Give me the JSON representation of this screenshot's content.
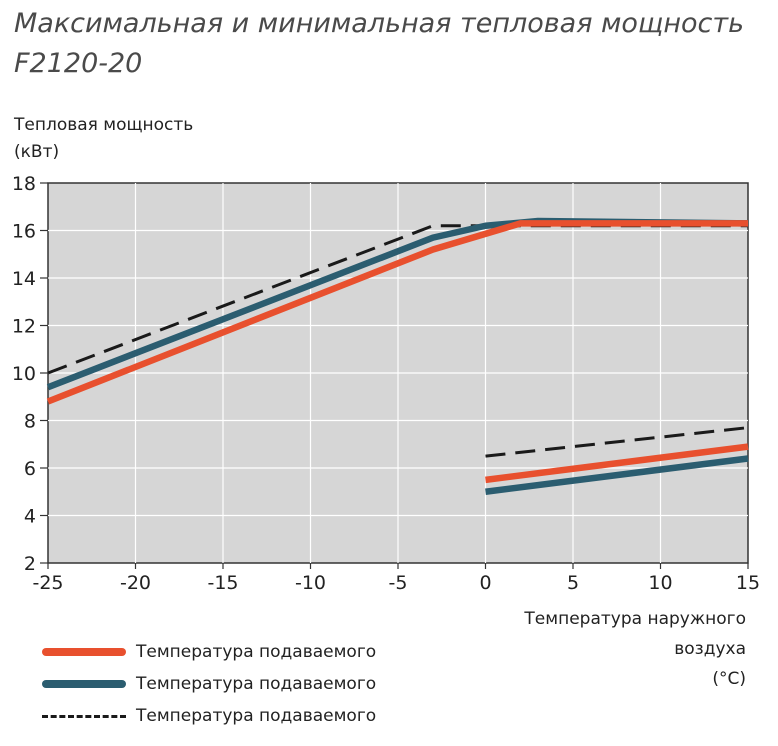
{
  "title_line1": "Максимальная и минимальная тепловая мощность",
  "title_line2": "F2120-20",
  "ylabel_line1": "Тепловая мощность",
  "ylabel_line2": "(кВт)",
  "xlabel_line1": "Температура наружного",
  "xlabel_line2": "воздуха",
  "xlabel_line3": "(°C)",
  "colors": {
    "plot_background": "#d6d6d6",
    "grid": "#ffffff",
    "red": "#e8502e",
    "teal": "#2b5d70",
    "dashed": "#1a1a1a"
  },
  "chart_data": {
    "type": "line",
    "xlim": [
      -25,
      15
    ],
    "ylim": [
      2,
      18
    ],
    "xticks": [
      -25,
      -20,
      -15,
      -10,
      -5,
      0,
      5,
      10,
      15
    ],
    "yticks": [
      2,
      4,
      6,
      8,
      10,
      12,
      14,
      16,
      18
    ],
    "grid": true,
    "legend_position": "bottom-left",
    "series": [
      {
        "name": "Температура подаваемого",
        "color": "red",
        "dash": false,
        "segment": "max",
        "points": [
          [
            -25,
            8.8
          ],
          [
            -3,
            15.2
          ],
          [
            2,
            16.3
          ],
          [
            15,
            16.3
          ]
        ]
      },
      {
        "name": "Температура подаваемого",
        "color": "teal",
        "dash": false,
        "segment": "max",
        "points": [
          [
            -25,
            9.4
          ],
          [
            -3,
            15.7
          ],
          [
            0,
            16.2
          ],
          [
            3,
            16.4
          ],
          [
            15,
            16.3
          ]
        ]
      },
      {
        "name": "Температура подаваемого",
        "color": "dashed",
        "dash": true,
        "segment": "max",
        "points": [
          [
            -25,
            10.0
          ],
          [
            -3,
            16.2
          ],
          [
            15,
            16.2
          ]
        ]
      },
      {
        "name": "Температура подаваемого",
        "color": "red",
        "dash": false,
        "segment": "min",
        "points": [
          [
            0,
            5.5
          ],
          [
            15,
            6.9
          ]
        ]
      },
      {
        "name": "Температура подаваемого",
        "color": "teal",
        "dash": false,
        "segment": "min",
        "points": [
          [
            0,
            5.0
          ],
          [
            15,
            6.4
          ]
        ]
      },
      {
        "name": "Температура подаваемого",
        "color": "dashed",
        "dash": true,
        "segment": "min",
        "points": [
          [
            0,
            6.5
          ],
          [
            15,
            7.7
          ]
        ]
      }
    ]
  },
  "legend": [
    {
      "label": "Температура подаваемого",
      "color": "red",
      "dash": false
    },
    {
      "label": "Температура подаваемого",
      "color": "teal",
      "dash": false
    },
    {
      "label": "Температура подаваемого",
      "color": "dashed",
      "dash": true
    }
  ]
}
